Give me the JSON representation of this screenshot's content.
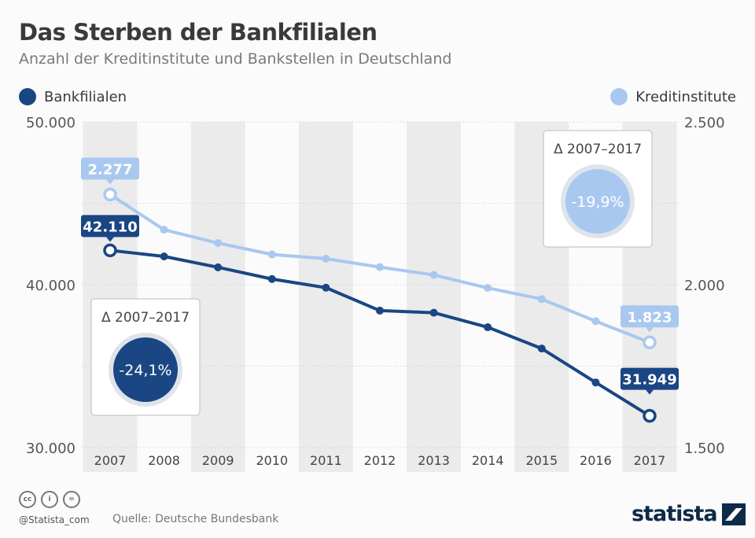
{
  "title": "Das Sterben der Bankfilialen",
  "subtitle": "Anzahl der Kreditinstitute und Bankstellen in Deutschland",
  "colors": {
    "bankfilialen": "#1a4683",
    "kreditinstitute": "#a9c8f0",
    "shade": "#ebebeb"
  },
  "footer": {
    "handle": "@Statista_com",
    "source": "Quelle: Deutsche Bundesbank",
    "logo": "statista",
    "license_icons": [
      "cc-icon",
      "by-icon",
      "nd-icon"
    ]
  },
  "chart_data": {
    "type": "line",
    "x": [
      "2007",
      "2008",
      "2009",
      "2010",
      "2011",
      "2012",
      "2013",
      "2014",
      "2015",
      "2016",
      "2017"
    ],
    "series": [
      {
        "name": "Bankfilialen",
        "axis": "left",
        "values": [
          42110,
          41740,
          41070,
          40350,
          39820,
          38410,
          38280,
          37390,
          36080,
          34000,
          31949
        ]
      },
      {
        "name": "Kreditinstitute",
        "axis": "right",
        "values": [
          2277,
          2169,
          2128,
          2093,
          2080,
          2054,
          2030,
          1990,
          1956,
          1888,
          1823
        ]
      }
    ],
    "y_left": {
      "range": [
        30000,
        50000
      ],
      "ticks": [
        "30.000",
        "40.000",
        "50.000"
      ]
    },
    "y_right": {
      "range": [
        1500,
        2500
      ],
      "ticks": [
        "1.500",
        "2.000",
        "2.500"
      ]
    },
    "grid": true,
    "legend": "top",
    "labels": {
      "bank_first": "42.110",
      "bank_last": "31.949",
      "kredit_first": "2.277",
      "kredit_last": "1.823"
    },
    "annotations": [
      {
        "series": "Bankfilialen",
        "title": "Δ 2007–2017",
        "value": "-24,1%"
      },
      {
        "series": "Kreditinstitute",
        "title": "Δ 2007–2017",
        "value": "-19,9%"
      }
    ]
  }
}
